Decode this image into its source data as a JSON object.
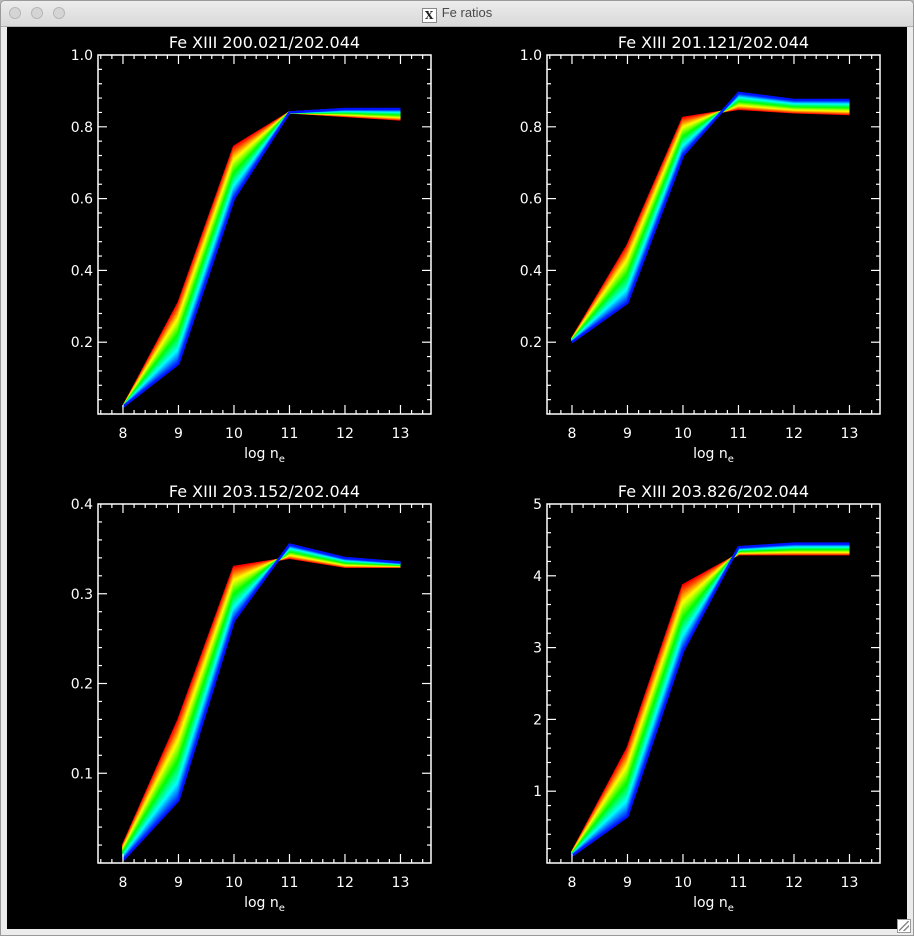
{
  "window": {
    "title": "Fe ratios",
    "app_icon": "x11-icon"
  },
  "colors": {
    "background": "#000000",
    "axes": "#ffffff",
    "palette": "rainbow (red to blue)"
  },
  "chart_data": [
    {
      "type": "line",
      "title": "Fe XIII 200.021/202.044",
      "xlabel": "log n",
      "xlabel_subscript": "e",
      "x": [
        8,
        9,
        10,
        11,
        12,
        13
      ],
      "xlim": [
        7.55,
        13.55
      ],
      "ylim": [
        0.0,
        1.0
      ],
      "yticks": [
        0.2,
        0.4,
        0.6,
        0.8,
        1.0
      ],
      "ytick_labels": [
        "0.2",
        "0.4",
        "0.6",
        "0.8",
        "1.0"
      ],
      "series_red": [
        0.02,
        0.31,
        0.745,
        0.84,
        0.83,
        0.82
      ],
      "series_blue": [
        0.02,
        0.14,
        0.6,
        0.84,
        0.85,
        0.85
      ],
      "n_curves": 30
    },
    {
      "type": "line",
      "title": "Fe XIII 201.121/202.044",
      "xlabel": "log n",
      "xlabel_subscript": "e",
      "x": [
        8,
        9,
        10,
        11,
        12,
        13
      ],
      "xlim": [
        7.55,
        13.55
      ],
      "ylim": [
        0.0,
        1.0
      ],
      "yticks": [
        0.2,
        0.4,
        0.6,
        0.8,
        1.0
      ],
      "ytick_labels": [
        "0.2",
        "0.4",
        "0.6",
        "0.8",
        "1.0"
      ],
      "series_red": [
        0.21,
        0.47,
        0.825,
        0.85,
        0.84,
        0.835
      ],
      "series_blue": [
        0.2,
        0.31,
        0.72,
        0.895,
        0.875,
        0.875
      ],
      "n_curves": 30
    },
    {
      "type": "line",
      "title": "Fe XIII 203.152/202.044",
      "xlabel": "log n",
      "xlabel_subscript": "e",
      "x": [
        8,
        9,
        10,
        11,
        12,
        13
      ],
      "xlim": [
        7.55,
        13.55
      ],
      "ylim": [
        0.0,
        0.4
      ],
      "yticks": [
        0.1,
        0.2,
        0.3,
        0.4
      ],
      "ytick_labels": [
        "0.1",
        "0.2",
        "0.3",
        "0.4"
      ],
      "series_red": [
        0.02,
        0.16,
        0.33,
        0.34,
        0.33,
        0.33
      ],
      "series_blue": [
        0.003,
        0.07,
        0.27,
        0.355,
        0.34,
        0.335
      ],
      "n_curves": 30
    },
    {
      "type": "line",
      "title": "Fe XIII 203.826/202.044",
      "xlabel": "log n",
      "xlabel_subscript": "e",
      "x": [
        8,
        9,
        10,
        11,
        12,
        13
      ],
      "xlim": [
        7.55,
        13.55
      ],
      "ylim": [
        0.0,
        5.0
      ],
      "yticks": [
        1,
        2,
        3,
        4,
        5
      ],
      "ytick_labels": [
        "1",
        "2",
        "3",
        "4",
        "5"
      ],
      "series_red": [
        0.15,
        1.6,
        3.87,
        4.3,
        4.3,
        4.3
      ],
      "series_blue": [
        0.1,
        0.65,
        2.95,
        4.4,
        4.45,
        4.45
      ],
      "n_curves": 30
    }
  ]
}
